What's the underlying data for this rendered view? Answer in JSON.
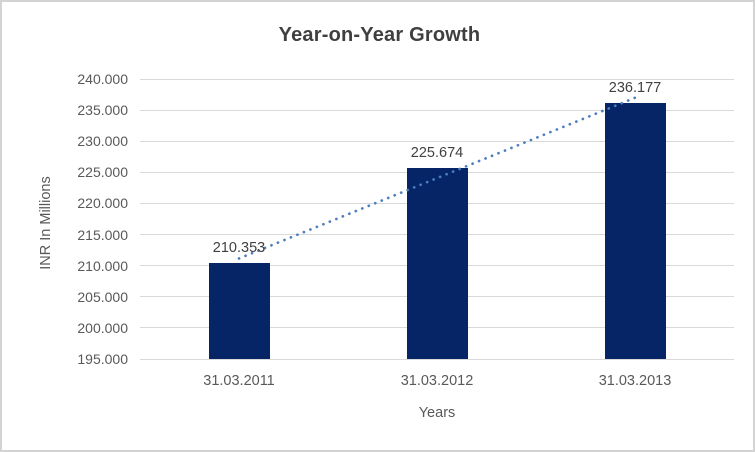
{
  "chart_data": {
    "type": "bar",
    "title": "Year-on-Year Growth",
    "categories": [
      "31.03.2011",
      "31.03.2012",
      "31.03.2013"
    ],
    "values": [
      210.353,
      225.674,
      236.177
    ],
    "data_labels": [
      "210.353",
      "225.674",
      "236.177"
    ],
    "xlabel": "Years",
    "ylabel": "INR In Millions",
    "ylim": [
      195,
      240
    ],
    "ytick_step": 5,
    "ytick_labels": [
      "240.000",
      "235.000",
      "230.000",
      "225.000",
      "220.000",
      "215.000",
      "210.000",
      "205.000",
      "200.000",
      "195.000"
    ],
    "grid": true,
    "legend": "none",
    "trendline": {
      "type": "linear",
      "style": "dotted"
    },
    "colors": {
      "bar": "#052566",
      "trendline": "#4d7ebd",
      "gridline": "#d9d9d9",
      "title_text": "#3f3f3f",
      "axis_text": "#595959",
      "data_label_text": "#404040",
      "frame_border": "#d3d3d3",
      "background": "#ffffff"
    }
  }
}
